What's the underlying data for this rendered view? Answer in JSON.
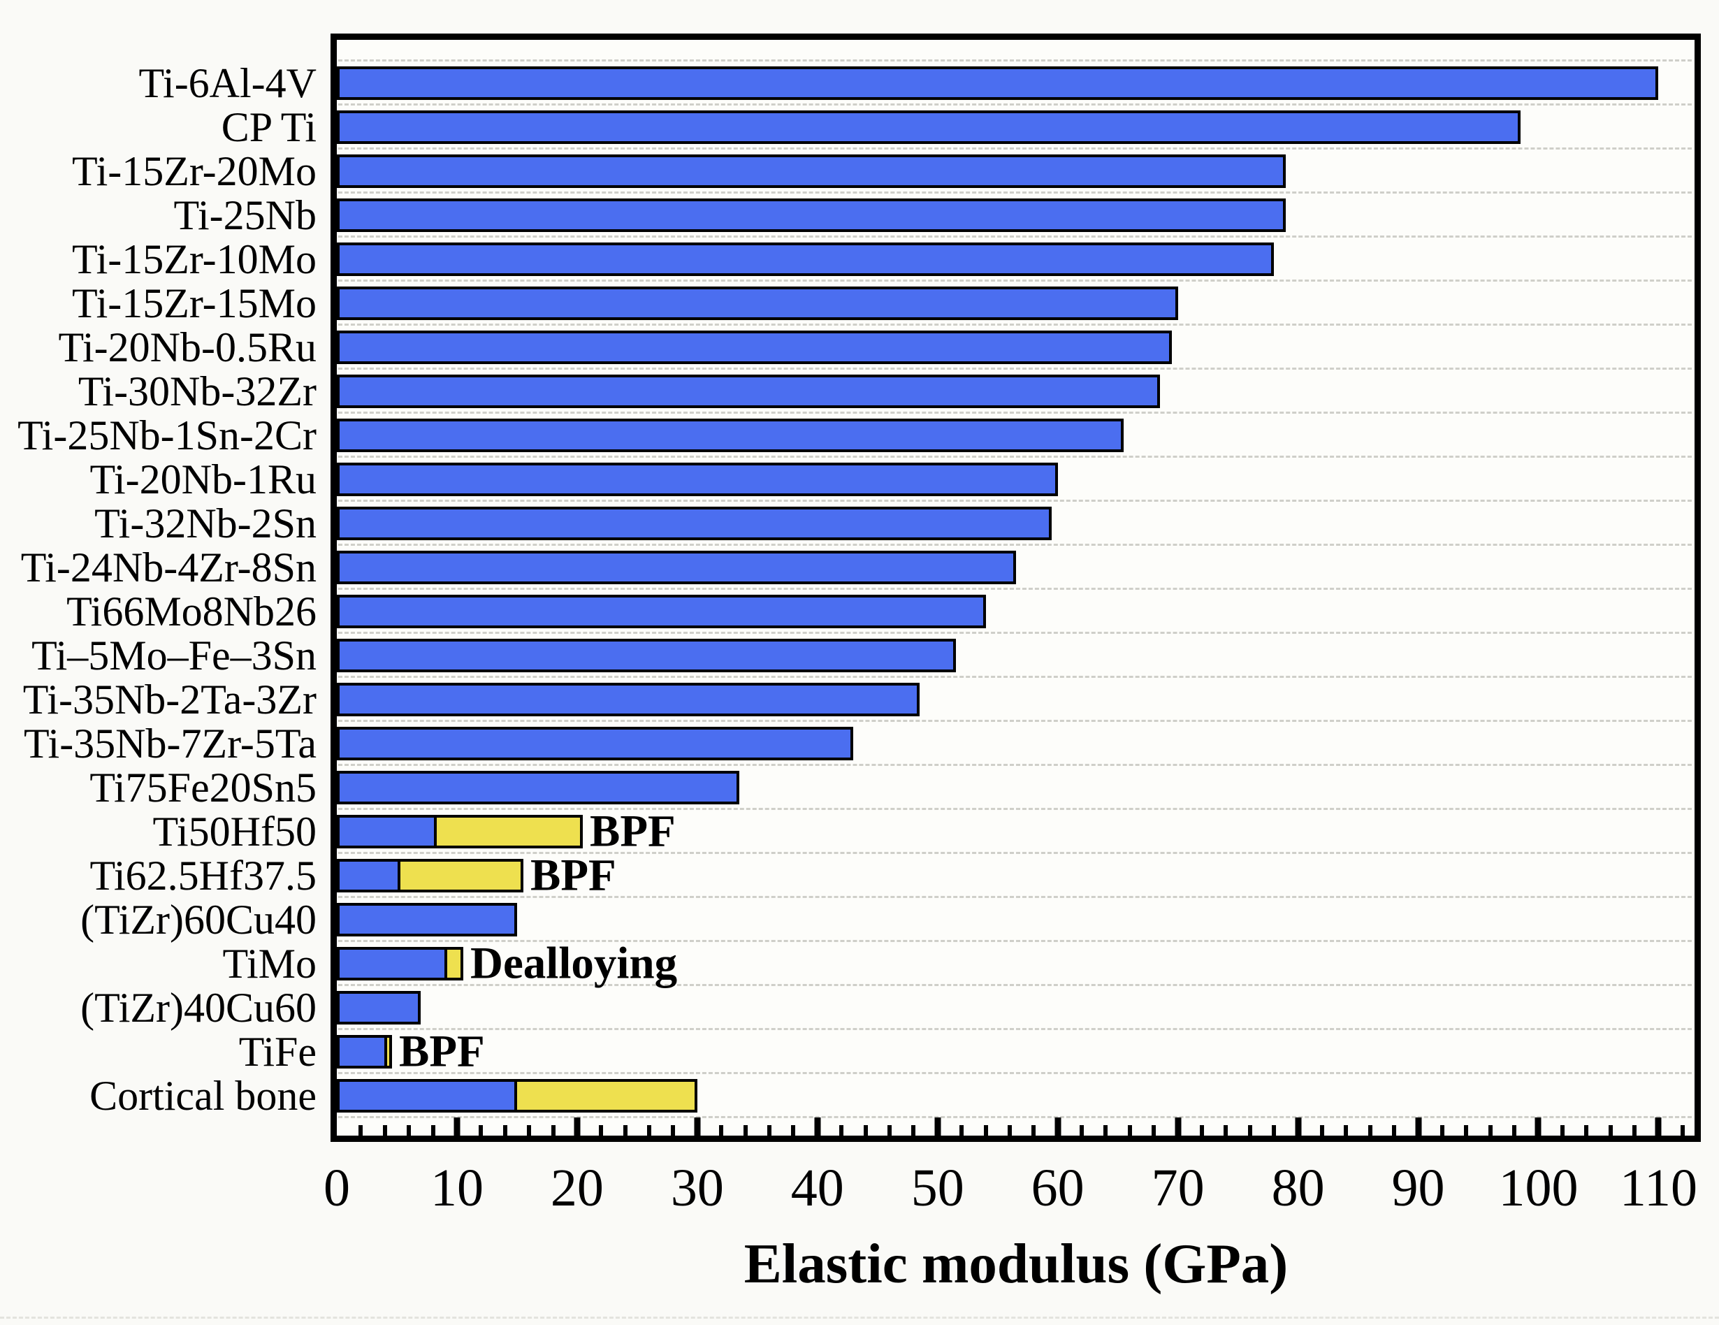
{
  "chart_data": {
    "type": "bar",
    "orientation": "horizontal",
    "title": "",
    "xlabel": "Elastic modulus (GPa)",
    "ylabel": "",
    "xlim": [
      0,
      113
    ],
    "x_major_tick_step": 10,
    "x_minor_tick_step": 2,
    "x_tick_labels": [
      "0",
      "10",
      "20",
      "30",
      "40",
      "50",
      "60",
      "70",
      "80",
      "90",
      "100",
      "110"
    ],
    "grid": "horizontal-dashed",
    "legend": "none",
    "series_note": "blue = elastic modulus of as-produced material; yellow = extension to upper value (porous/foam processing range)",
    "bars": [
      {
        "label": "Ti-6Al-4V",
        "blue": 110,
        "total": 110,
        "annotation": ""
      },
      {
        "label": "CP Ti",
        "blue": 98.5,
        "total": 98.5,
        "annotation": ""
      },
      {
        "label": "Ti-15Zr-20Mo",
        "blue": 79,
        "total": 79,
        "annotation": ""
      },
      {
        "label": "Ti-25Nb",
        "blue": 79,
        "total": 79,
        "annotation": ""
      },
      {
        "label": "Ti-15Zr-10Mo",
        "blue": 78,
        "total": 78,
        "annotation": ""
      },
      {
        "label": "Ti-15Zr-15Mo",
        "blue": 70,
        "total": 70,
        "annotation": ""
      },
      {
        "label": "Ti-20Nb-0.5Ru",
        "blue": 69.5,
        "total": 69.5,
        "annotation": ""
      },
      {
        "label": "Ti-30Nb-32Zr",
        "blue": 68.5,
        "total": 68.5,
        "annotation": ""
      },
      {
        "label": "Ti-25Nb-1Sn-2Cr",
        "blue": 65.5,
        "total": 65.5,
        "annotation": ""
      },
      {
        "label": "Ti-20Nb-1Ru",
        "blue": 60,
        "total": 60,
        "annotation": ""
      },
      {
        "label": "Ti-32Nb-2Sn",
        "blue": 59.5,
        "total": 59.5,
        "annotation": ""
      },
      {
        "label": "Ti-24Nb-4Zr-8Sn",
        "blue": 56.5,
        "total": 56.5,
        "annotation": ""
      },
      {
        "label": "Ti66Mo8Nb26",
        "blue": 54,
        "total": 54,
        "annotation": ""
      },
      {
        "label": "Ti–5Mo–Fe–3Sn",
        "blue": 51.5,
        "total": 51.5,
        "annotation": ""
      },
      {
        "label": "Ti-35Nb-2Ta-3Zr",
        "blue": 48.5,
        "total": 48.5,
        "annotation": ""
      },
      {
        "label": "Ti-35Nb-7Zr-5Ta",
        "blue": 43,
        "total": 43,
        "annotation": ""
      },
      {
        "label": "Ti75Fe20Sn5",
        "blue": 33.5,
        "total": 33.5,
        "annotation": ""
      },
      {
        "label": "Ti50Hf50",
        "blue": 8.3,
        "total": 20.5,
        "annotation": "BPF"
      },
      {
        "label": "Ti62.5Hf37.5",
        "blue": 5.3,
        "total": 15.5,
        "annotation": "BPF"
      },
      {
        "label": "(TiZr)60Cu40",
        "blue": 15,
        "total": 15,
        "annotation": ""
      },
      {
        "label": "TiMo",
        "blue": 9.2,
        "total": 10.5,
        "annotation": "Dealloying"
      },
      {
        "label": "(TiZr)40Cu60",
        "blue": 7,
        "total": 7,
        "annotation": ""
      },
      {
        "label": "TiFe",
        "blue": 4.2,
        "total": 4.6,
        "annotation": "BPF"
      },
      {
        "label": "Cortical bone",
        "blue": 15,
        "total": 30,
        "annotation": ""
      }
    ],
    "colors": {
      "bar_blue": "#4b6ef0",
      "bar_yellow": "#eee04f",
      "bar_border": "#000000",
      "gridline": "#cfcfc9",
      "frame": "#000000",
      "background": "#fafaf7"
    }
  }
}
